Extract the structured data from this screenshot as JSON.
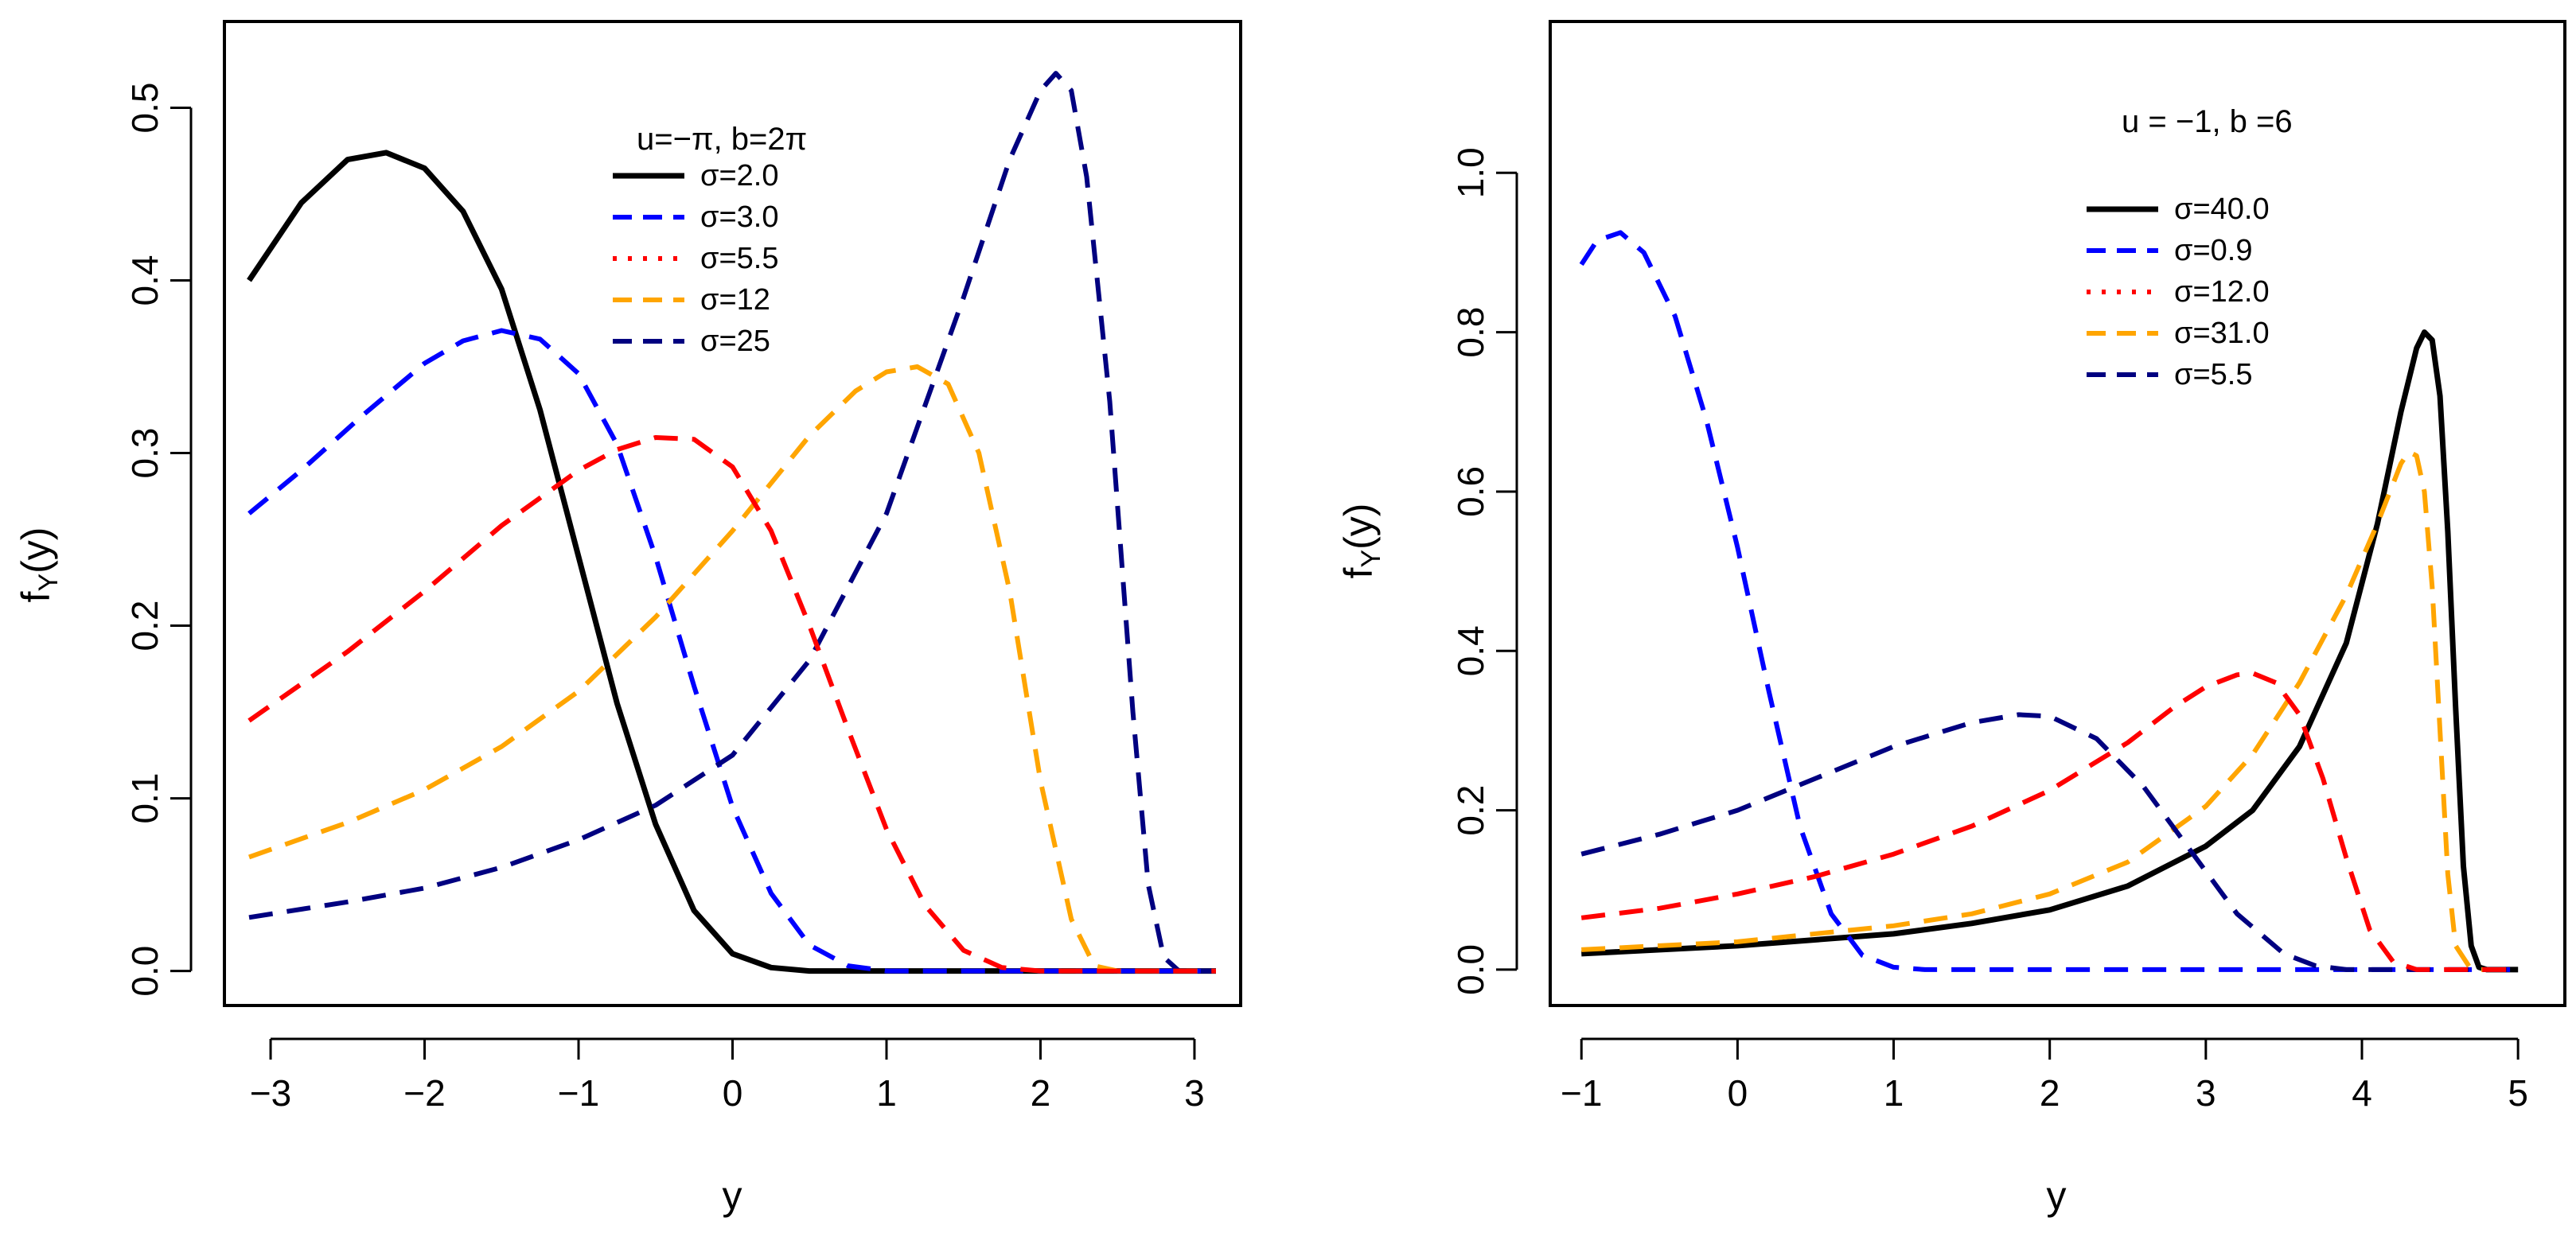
{
  "chart_data": [
    {
      "type": "line",
      "xlabel": "y",
      "ylabel": "f",
      "ylabel_sub": "Y",
      "ylabel_suffix": "(y)",
      "xlim": [
        -3.3,
        3.3
      ],
      "ylim": [
        -0.02,
        0.55
      ],
      "xticks": [
        -3,
        -2,
        -1,
        0,
        1,
        2,
        3
      ],
      "xtick_labels": [
        "−3",
        "−2",
        "−1",
        "0",
        "1",
        "2",
        "3"
      ],
      "yticks": [
        0.0,
        0.1,
        0.2,
        0.3,
        0.4,
        0.5
      ],
      "ytick_labels": [
        "0.0",
        "0.1",
        "0.2",
        "0.3",
        "0.4",
        "0.5"
      ],
      "grid": false,
      "legend_title": "u=−π, b=2π",
      "legend_position": "top-center",
      "series": [
        {
          "name": "σ=2.0",
          "color": "#000000",
          "dash": "solid",
          "drawn": true,
          "x": [
            -3.14,
            -2.8,
            -2.5,
            -2.25,
            -2.0,
            -1.75,
            -1.5,
            -1.25,
            -1.0,
            -0.75,
            -0.5,
            -0.25,
            0.0,
            0.25,
            0.5,
            1.0,
            1.5,
            2.0,
            2.5,
            3.14
          ],
          "y": [
            0.4,
            0.445,
            0.47,
            0.474,
            0.465,
            0.44,
            0.395,
            0.325,
            0.24,
            0.155,
            0.085,
            0.035,
            0.01,
            0.002,
            0.0,
            0.0,
            0.0,
            0.0,
            0.0,
            0.0
          ]
        },
        {
          "name": "σ=3.0",
          "color": "#0000ff",
          "dash": "dashed",
          "drawn": true,
          "x": [
            -3.14,
            -2.8,
            -2.4,
            -2.0,
            -1.75,
            -1.5,
            -1.25,
            -1.0,
            -0.75,
            -0.5,
            -0.25,
            0.0,
            0.25,
            0.5,
            0.75,
            1.0,
            1.5,
            2.0,
            3.14
          ],
          "y": [
            0.265,
            0.29,
            0.322,
            0.352,
            0.365,
            0.371,
            0.366,
            0.346,
            0.305,
            0.24,
            0.165,
            0.095,
            0.045,
            0.015,
            0.003,
            0.0,
            0.0,
            0.0,
            0.0
          ]
        },
        {
          "name": "σ=5.5",
          "color": "#ff0000",
          "dash": "dotted",
          "drawn": false,
          "x": [],
          "y": []
        },
        {
          "name": "σ=12",
          "color": "#ffa500",
          "dash": "dashed",
          "drawn": true,
          "x": [
            -3.14,
            -2.5,
            -2.0,
            -1.5,
            -1.0,
            -0.5,
            0.0,
            0.5,
            0.8,
            1.0,
            1.2,
            1.4,
            1.6,
            1.8,
            2.0,
            2.2,
            2.35,
            2.5,
            3.14
          ],
          "y": [
            0.066,
            0.086,
            0.105,
            0.13,
            0.162,
            0.205,
            0.255,
            0.31,
            0.336,
            0.347,
            0.35,
            0.34,
            0.3,
            0.22,
            0.11,
            0.03,
            0.003,
            0.0,
            0.0
          ]
        },
        {
          "name": "σ=25",
          "color": "#000080",
          "dash": "dashed",
          "drawn": true,
          "x": [
            -3.14,
            -2.5,
            -2.0,
            -1.5,
            -1.0,
            -0.5,
            0.0,
            0.5,
            1.0,
            1.5,
            1.8,
            2.0,
            2.1,
            2.2,
            2.3,
            2.45,
            2.6,
            2.7,
            2.8,
            2.9,
            3.14
          ],
          "y": [
            0.031,
            0.04,
            0.048,
            0.06,
            0.076,
            0.096,
            0.125,
            0.18,
            0.265,
            0.39,
            0.47,
            0.51,
            0.52,
            0.51,
            0.46,
            0.33,
            0.15,
            0.05,
            0.008,
            0.0,
            0.0
          ]
        },
        {
          "name": "",
          "color": "#ff0000",
          "dash": "dashed",
          "drawn": true,
          "x": [
            -3.14,
            -2.5,
            -2.0,
            -1.5,
            -1.0,
            -0.75,
            -0.5,
            -0.25,
            0.0,
            0.25,
            0.5,
            0.75,
            1.0,
            1.25,
            1.5,
            1.75,
            2.0,
            2.5,
            3.14
          ],
          "y": [
            0.145,
            0.185,
            0.22,
            0.258,
            0.29,
            0.302,
            0.309,
            0.308,
            0.292,
            0.255,
            0.2,
            0.14,
            0.082,
            0.038,
            0.012,
            0.002,
            0.0,
            0.0,
            0.0
          ]
        }
      ]
    },
    {
      "type": "line",
      "xlabel": "y",
      "ylabel": "f",
      "ylabel_sub": "Y",
      "ylabel_suffix": "(y)",
      "xlim": [
        -1.2,
        5.3
      ],
      "ylim": [
        -0.045,
        1.19
      ],
      "xticks": [
        -1,
        0,
        1,
        2,
        3,
        4,
        5
      ],
      "xtick_labels": [
        "−1",
        "0",
        "1",
        "2",
        "3",
        "4",
        "5"
      ],
      "yticks": [
        0.0,
        0.2,
        0.4,
        0.6,
        0.8,
        1.0
      ],
      "ytick_labels": [
        "0.0",
        "0.2",
        "0.4",
        "0.6",
        "0.8",
        "1.0"
      ],
      "grid": false,
      "legend_title": "u = −1, b =6",
      "legend_position": "top-center",
      "series": [
        {
          "name": "σ=40.0",
          "color": "#000000",
          "dash": "solid",
          "drawn": true,
          "x": [
            -1.0,
            0.0,
            1.0,
            1.5,
            2.0,
            2.5,
            3.0,
            3.3,
            3.6,
            3.9,
            4.1,
            4.25,
            4.35,
            4.4,
            4.45,
            4.5,
            4.55,
            4.6,
            4.65,
            4.7,
            4.75,
            4.8,
            5.0
          ],
          "y": [
            0.02,
            0.03,
            0.045,
            0.058,
            0.075,
            0.105,
            0.155,
            0.2,
            0.28,
            0.41,
            0.56,
            0.7,
            0.78,
            0.8,
            0.79,
            0.72,
            0.55,
            0.33,
            0.13,
            0.03,
            0.003,
            0.0,
            0.0
          ]
        },
        {
          "name": "σ=0.9",
          "color": "#0000ff",
          "dash": "dashed",
          "drawn": true,
          "x": [
            -1.0,
            -0.9,
            -0.75,
            -0.6,
            -0.4,
            -0.2,
            0.0,
            0.2,
            0.4,
            0.6,
            0.8,
            1.0,
            1.2,
            1.5,
            2.0,
            3.0,
            4.0,
            5.0
          ],
          "y": [
            0.885,
            0.915,
            0.925,
            0.9,
            0.82,
            0.69,
            0.53,
            0.35,
            0.18,
            0.07,
            0.018,
            0.003,
            0.0,
            0.0,
            0.0,
            0.0,
            0.0,
            0.0
          ]
        },
        {
          "name": "σ=12.0",
          "color": "#ff0000",
          "dash": "dotted",
          "drawn": false,
          "x": [],
          "y": []
        },
        {
          "name": "σ=31.0",
          "color": "#ffa500",
          "dash": "dashed",
          "drawn": true,
          "x": [
            -1.0,
            0.0,
            1.0,
            1.5,
            2.0,
            2.5,
            3.0,
            3.3,
            3.6,
            3.9,
            4.1,
            4.25,
            4.3,
            4.35,
            4.4,
            4.45,
            4.5,
            4.55,
            4.6,
            4.7,
            5.0
          ],
          "y": [
            0.025,
            0.035,
            0.055,
            0.07,
            0.095,
            0.135,
            0.205,
            0.27,
            0.36,
            0.47,
            0.56,
            0.635,
            0.65,
            0.645,
            0.6,
            0.48,
            0.3,
            0.12,
            0.03,
            0.0,
            0.0
          ]
        },
        {
          "name": "σ=5.5",
          "color": "#000080",
          "dash": "dashed",
          "drawn": true,
          "x": [
            -1.0,
            -0.5,
            0.0,
            0.5,
            1.0,
            1.5,
            1.8,
            2.0,
            2.3,
            2.6,
            2.9,
            3.2,
            3.5,
            3.7,
            3.9,
            4.2,
            5.0
          ],
          "y": [
            0.145,
            0.17,
            0.2,
            0.24,
            0.28,
            0.31,
            0.32,
            0.318,
            0.29,
            0.23,
            0.15,
            0.07,
            0.02,
            0.005,
            0.0,
            0.0,
            0.0
          ]
        },
        {
          "name": "",
          "color": "#ff0000",
          "dash": "dashed",
          "drawn": true,
          "x": [
            -1.0,
            -0.5,
            0.0,
            0.5,
            1.0,
            1.5,
            2.0,
            2.5,
            2.8,
            3.0,
            3.2,
            3.3,
            3.45,
            3.6,
            3.75,
            3.9,
            4.05,
            4.2,
            4.35,
            5.0
          ],
          "y": [
            0.065,
            0.077,
            0.095,
            0.117,
            0.145,
            0.18,
            0.225,
            0.285,
            0.33,
            0.355,
            0.37,
            0.372,
            0.36,
            0.32,
            0.24,
            0.14,
            0.05,
            0.01,
            0.0,
            0.0
          ]
        }
      ]
    }
  ]
}
